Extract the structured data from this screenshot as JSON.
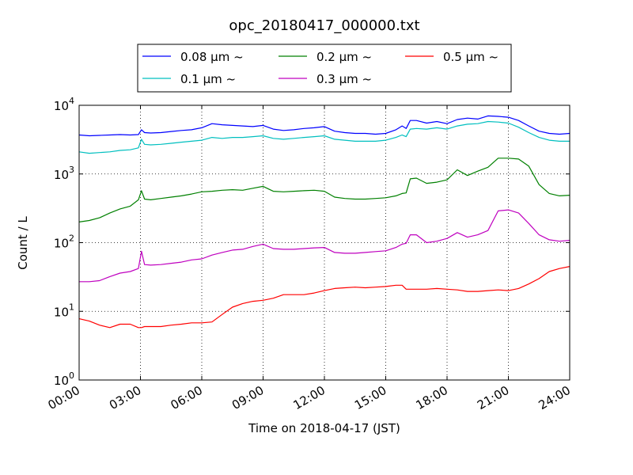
{
  "chart_data": {
    "type": "line",
    "title": "opc_20180417_000000.txt",
    "xlabel": "Time on 2018-04-17 (JST)",
    "ylabel": "Count / L",
    "yscale": "log",
    "xlim": [
      0,
      24
    ],
    "ylim": [
      1,
      10000
    ],
    "grid": true,
    "legend_position": "top-outside",
    "x_ticks": [
      {
        "v": 0,
        "label": "00:00"
      },
      {
        "v": 3,
        "label": "03:00"
      },
      {
        "v": 6,
        "label": "06:00"
      },
      {
        "v": 9,
        "label": "09:00"
      },
      {
        "v": 12,
        "label": "12:00"
      },
      {
        "v": 15,
        "label": "15:00"
      },
      {
        "v": 18,
        "label": "18:00"
      },
      {
        "v": 21,
        "label": "21:00"
      },
      {
        "v": 24,
        "label": "24:00"
      }
    ],
    "y_ticks": [
      {
        "v": 1,
        "base": "10",
        "exp": "0"
      },
      {
        "v": 10,
        "base": "10",
        "exp": "1"
      },
      {
        "v": 100,
        "base": "10",
        "exp": "2"
      },
      {
        "v": 1000,
        "base": "10",
        "exp": "3"
      },
      {
        "v": 10000,
        "base": "10",
        "exp": "4"
      }
    ],
    "x": [
      0,
      0.5,
      1,
      1.5,
      2,
      2.5,
      2.9,
      3.05,
      3.2,
      3.5,
      4,
      4.5,
      5,
      5.5,
      6,
      6.5,
      7,
      7.5,
      8,
      8.5,
      9,
      9.5,
      10,
      10.5,
      11,
      11.5,
      12,
      12.5,
      13,
      13.5,
      14,
      14.5,
      15,
      15.5,
      15.8,
      16,
      16.2,
      16.5,
      17,
      17.5,
      18,
      18.5,
      19,
      19.5,
      20,
      20.5,
      21,
      21.5,
      22,
      22.5,
      23,
      23.5,
      24
    ],
    "series": [
      {
        "name": "0.08 μm ~",
        "color": "#0000ff",
        "values": [
          3700,
          3600,
          3650,
          3700,
          3750,
          3700,
          3750,
          4400,
          4000,
          3950,
          4000,
          4150,
          4300,
          4400,
          4700,
          5400,
          5200,
          5100,
          5000,
          4900,
          5100,
          4500,
          4300,
          4400,
          4600,
          4700,
          4900,
          4200,
          4000,
          3900,
          3900,
          3800,
          3900,
          4400,
          5000,
          4600,
          6000,
          6000,
          5500,
          5800,
          5400,
          6200,
          6500,
          6300,
          7000,
          6900,
          6700,
          6000,
          5000,
          4200,
          3900,
          3800,
          3900
        ]
      },
      {
        "name": "0.1 μm ~",
        "color": "#00bfbf",
        "values": [
          2100,
          2000,
          2050,
          2100,
          2200,
          2250,
          2400,
          3200,
          2700,
          2650,
          2700,
          2800,
          2900,
          3000,
          3100,
          3400,
          3300,
          3400,
          3400,
          3500,
          3600,
          3300,
          3200,
          3300,
          3400,
          3500,
          3600,
          3200,
          3100,
          3000,
          3000,
          3000,
          3100,
          3400,
          3700,
          3500,
          4500,
          4600,
          4500,
          4700,
          4500,
          5000,
          5300,
          5400,
          5800,
          5700,
          5500,
          4800,
          4000,
          3400,
          3100,
          3000,
          3000
        ]
      },
      {
        "name": "0.2 μm ~",
        "color": "#008000",
        "values": [
          200,
          210,
          230,
          270,
          310,
          340,
          420,
          570,
          430,
          420,
          440,
          460,
          480,
          510,
          550,
          560,
          580,
          590,
          580,
          620,
          660,
          560,
          550,
          560,
          570,
          580,
          560,
          460,
          440,
          430,
          430,
          440,
          450,
          480,
          520,
          530,
          850,
          870,
          730,
          760,
          820,
          1150,
          950,
          1100,
          1250,
          1700,
          1700,
          1650,
          1300,
          700,
          520,
          480,
          490
        ]
      },
      {
        "name": "0.3 μm ~",
        "color": "#bf00bf",
        "values": [
          27,
          27,
          28,
          32,
          36,
          38,
          42,
          75,
          48,
          47,
          48,
          50,
          52,
          56,
          58,
          66,
          72,
          78,
          80,
          88,
          95,
          82,
          80,
          80,
          82,
          84,
          85,
          72,
          70,
          70,
          72,
          74,
          76,
          85,
          95,
          98,
          130,
          130,
          100,
          105,
          115,
          140,
          120,
          130,
          150,
          290,
          300,
          270,
          190,
          130,
          110,
          105,
          108
        ]
      },
      {
        "name": "0.5 μm ~",
        "color": "#ff0000",
        "values": [
          7.8,
          7.2,
          6.3,
          5.8,
          6.5,
          6.5,
          5.8,
          5.8,
          6.0,
          6.0,
          6.0,
          6.3,
          6.5,
          6.8,
          6.8,
          7.0,
          9.0,
          11.5,
          13.0,
          14.0,
          14.5,
          15.5,
          17.5,
          17.5,
          17.5,
          18.5,
          20.0,
          21.5,
          22.0,
          22.5,
          22.0,
          22.5,
          23.0,
          24.0,
          24.0,
          21.0,
          21.0,
          21.0,
          21.0,
          21.5,
          21.0,
          20.5,
          19.5,
          19.5,
          20.0,
          20.5,
          20.0,
          21.5,
          25.0,
          30.0,
          38.0,
          42.0,
          45.0
        ]
      }
    ]
  }
}
